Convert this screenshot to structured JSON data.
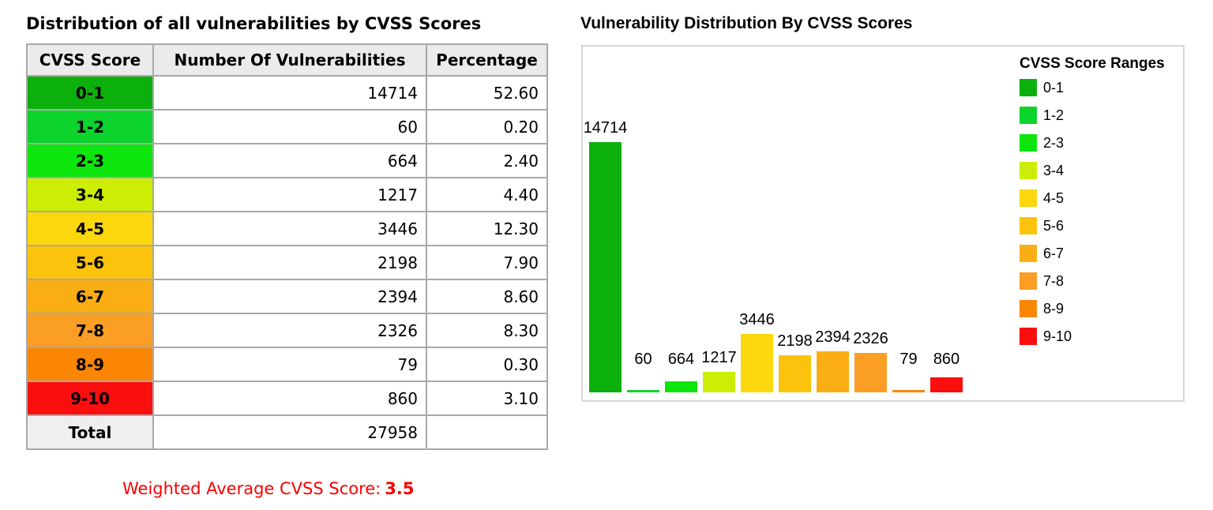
{
  "left": {
    "title": "Distribution of all vulnerabilities by CVSS Scores",
    "table": {
      "headers": [
        "CVSS Score",
        "Number Of Vulnerabilities",
        "Percentage"
      ],
      "rows": [
        {
          "range": "0-1",
          "count": "14714",
          "pct": "52.60",
          "color": "#0cb00c"
        },
        {
          "range": "1-2",
          "count": "60",
          "pct": "0.20",
          "color": "#0cd42c"
        },
        {
          "range": "2-3",
          "count": "664",
          "pct": "2.40",
          "color": "#0ce60c"
        },
        {
          "range": "3-4",
          "count": "1217",
          "pct": "4.40",
          "color": "#ccee04"
        },
        {
          "range": "4-5",
          "count": "3446",
          "pct": "12.30",
          "color": "#fcd80c"
        },
        {
          "range": "5-6",
          "count": "2198",
          "pct": "7.90",
          "color": "#fcc30c"
        },
        {
          "range": "6-7",
          "count": "2394",
          "pct": "8.60",
          "color": "#fbae14"
        },
        {
          "range": "7-8",
          "count": "2326",
          "pct": "8.30",
          "color": "#fb9e24"
        },
        {
          "range": "8-9",
          "count": "79",
          "pct": "0.30",
          "color": "#fb8604"
        },
        {
          "range": "9-10",
          "count": "860",
          "pct": "3.10",
          "color": "#fb0e0e"
        }
      ],
      "total_label": "Total",
      "total_count": "27958",
      "total_pct": ""
    },
    "weighted_label": "Weighted Average CVSS Score:",
    "weighted_value": "3.5",
    "weighted_color": "#fa0000"
  },
  "right": {
    "title": "Vulnerability Distribution By CVSS Scores",
    "legend_title": "CVSS Score Ranges"
  },
  "chart_data": {
    "type": "bar",
    "title": "Vulnerability Distribution By CVSS Scores",
    "categories": [
      "0-1",
      "1-2",
      "2-3",
      "3-4",
      "4-5",
      "5-6",
      "6-7",
      "7-8",
      "8-9",
      "9-10"
    ],
    "values": [
      14714,
      60,
      664,
      1217,
      3446,
      2198,
      2394,
      2326,
      79,
      860
    ],
    "colors": [
      "#0cb00c",
      "#0cd42c",
      "#0ce60c",
      "#ccee04",
      "#fcd80c",
      "#fcc30c",
      "#fbae14",
      "#fb9e24",
      "#fb8604",
      "#fb0e0e"
    ],
    "bar_labels": true,
    "legend_title": "CVSS Score Ranges",
    "legend_position": "right",
    "xlabel": "",
    "ylabel": "",
    "ylim": [
      0,
      15000
    ],
    "grid": false,
    "axes_visible": false
  }
}
